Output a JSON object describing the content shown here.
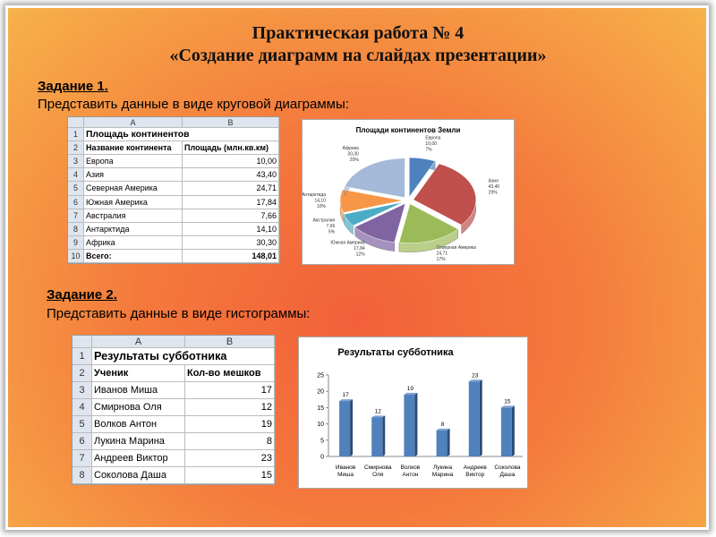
{
  "header": {
    "title_lines": [
      "Практическая работа № 4",
      "«Создание диаграмм на слайдах презентации»"
    ]
  },
  "task1": {
    "label": "Задание 1.",
    "text": "Представить данные в виде круговой диаграммы:",
    "table": {
      "col_letters": [
        "A",
        "B"
      ],
      "row_numbers": [
        1,
        2,
        3,
        4,
        5,
        6,
        7,
        8,
        9,
        10
      ],
      "title": "Площадь континентов",
      "header": [
        "Название континента",
        "Площадь (млн.кв.км)"
      ],
      "rows": [
        [
          "Европа",
          "10,00"
        ],
        [
          "Азия",
          "43,40"
        ],
        [
          "Северная Америка",
          "24,71"
        ],
        [
          "Южная Америка",
          "17,84"
        ],
        [
          "Австралия",
          "7,66"
        ],
        [
          "Антарктида",
          "14,10"
        ],
        [
          "Африка",
          "30,30"
        ]
      ],
      "total": [
        "Всего:",
        "148,01"
      ]
    },
    "chart": {
      "type": "pie",
      "title": "Площади континентов Земли",
      "categories": [
        "Европа",
        "Азия",
        "Северная Америка",
        "Южная Америка",
        "Австралия",
        "Антарктида",
        "Африка"
      ],
      "values": [
        10.0,
        43.4,
        24.71,
        17.84,
        7.66,
        14.1,
        30.3
      ],
      "value_labels": [
        "10,00",
        "43,40",
        "24,71",
        "17,84",
        "7,66",
        "14,10",
        "30,30"
      ],
      "percent_labels": [
        "7%",
        "29%",
        "17%",
        "12%",
        "5%",
        "10%",
        "20%"
      ],
      "colors": [
        "#4f81bd",
        "#c0504d",
        "#9bbb59",
        "#8064a2",
        "#4bacc6",
        "#f79646",
        "#a5b9d8"
      ]
    }
  },
  "task2": {
    "label": "Задание 2.",
    "text": "Представить данные в виде гистограммы:",
    "table": {
      "col_letters": [
        "A",
        "B"
      ],
      "row_numbers": [
        1,
        2,
        3,
        4,
        5,
        6,
        7,
        8
      ],
      "title": "Результаты субботника",
      "header": [
        "Ученик",
        "Кол-во мешков"
      ],
      "rows": [
        [
          "Иванов Миша",
          "17"
        ],
        [
          "Смирнова Оля",
          "12"
        ],
        [
          "Волков Антон",
          "19"
        ],
        [
          "Лукина Марина",
          "8"
        ],
        [
          "Андреев Виктор",
          "23"
        ],
        [
          "Соколова Даша",
          "15"
        ]
      ]
    },
    "chart": {
      "type": "bar",
      "title": "Результаты субботника",
      "categories": [
        "Иванов Миша",
        "Смирнова Оля",
        "Волков Антон",
        "Лукина Марина",
        "Андреев Виктор",
        "Соколова Даша"
      ],
      "values": [
        17,
        12,
        19,
        8,
        23,
        15
      ],
      "color": "#4f81bd",
      "ylim": [
        0,
        25
      ],
      "yticks": [
        0,
        5,
        10,
        15,
        20,
        25
      ]
    }
  }
}
